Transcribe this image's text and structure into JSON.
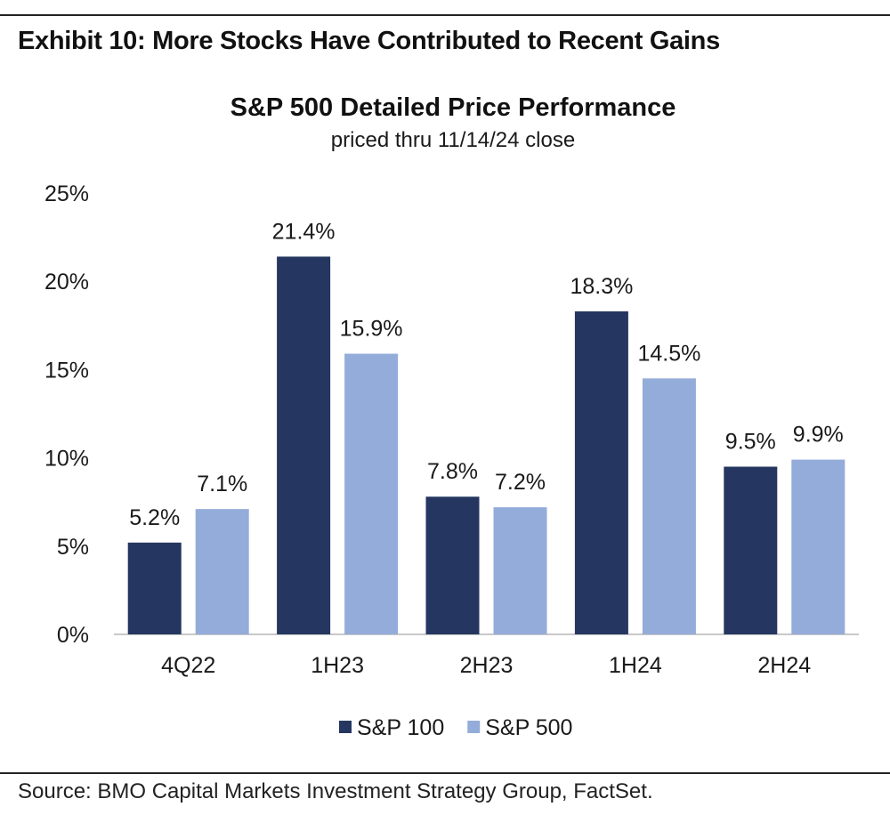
{
  "exhibit": {
    "title": "Exhibit 10: More Stocks Have Contributed to Recent Gains",
    "source": "Source: BMO Capital Markets Investment Strategy Group, FactSet."
  },
  "chart_data": {
    "type": "bar",
    "title": "S&P 500 Detailed Price Performance",
    "subtitle": "priced thru 11/14/24 close",
    "categories": [
      "4Q22",
      "1H23",
      "2H23",
      "1H24",
      "2H24"
    ],
    "series": [
      {
        "name": "S&P 100",
        "values": [
          5.2,
          21.4,
          7.8,
          18.3,
          9.5
        ],
        "labels": [
          "5.2%",
          "21.4%",
          "7.8%",
          "18.3%",
          "9.5%"
        ],
        "color": "#253760"
      },
      {
        "name": "S&P 500",
        "values": [
          7.1,
          15.9,
          7.2,
          14.5,
          9.9
        ],
        "labels": [
          "7.1%",
          "15.9%",
          "7.2%",
          "14.5%",
          "9.9%"
        ],
        "color": "#94acd9"
      }
    ],
    "yticks": [
      0,
      5,
      10,
      15,
      20,
      25
    ],
    "ytick_labels": [
      "0%",
      "5%",
      "10%",
      "15%",
      "20%",
      "25%"
    ],
    "ylim": [
      0,
      25
    ],
    "xlabel": "",
    "ylabel": "",
    "grid": false,
    "legend": "bottom-center"
  }
}
